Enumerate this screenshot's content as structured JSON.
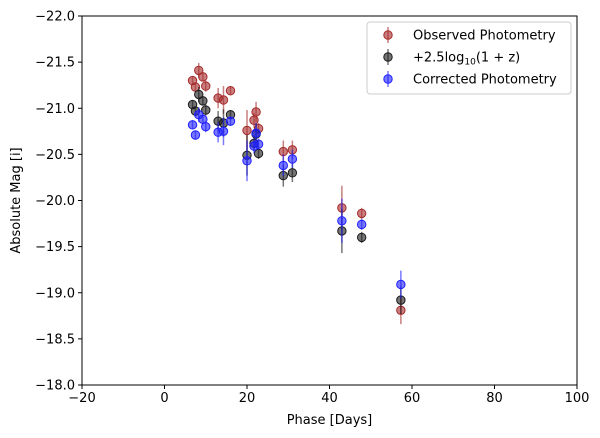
{
  "chart_data": {
    "type": "scatter",
    "title": "",
    "xlabel": "Phase [Days]",
    "ylabel": "Absolute Mag [i]",
    "xlim": [
      -20,
      100
    ],
    "ylim": [
      -18.0,
      -22.0
    ],
    "y_inverted": true,
    "grid": false,
    "legend_position": "top-right",
    "x_ticks": [
      -20,
      0,
      20,
      40,
      60,
      80,
      100
    ],
    "x_tick_labels": [
      "−20",
      "0",
      "20",
      "40",
      "60",
      "80",
      "100"
    ],
    "y_ticks": [
      -22.0,
      -21.5,
      -21.0,
      -20.5,
      -20.0,
      -19.5,
      -19.0,
      -18.5,
      -18.0
    ],
    "y_tick_labels": [
      "−22.0",
      "−21.5",
      "−21.0",
      "−20.5",
      "−20.0",
      "−19.5",
      "−19.0",
      "−18.5",
      "−18.0"
    ],
    "series": [
      {
        "name": "Observed Photometry",
        "color": "#a52a2a",
        "points": [
          {
            "x": 6.8,
            "y": -21.3,
            "err": 0.05
          },
          {
            "x": 7.5,
            "y": -21.23,
            "err": 0.05
          },
          {
            "x": 8.3,
            "y": -21.41,
            "err": 0.08
          },
          {
            "x": 9.3,
            "y": -21.34,
            "err": 0.05
          },
          {
            "x": 10.0,
            "y": -21.24,
            "err": 0.06
          },
          {
            "x": 13.0,
            "y": -21.11,
            "err": 0.11
          },
          {
            "x": 14.3,
            "y": -21.09,
            "err": 0.15
          },
          {
            "x": 16.0,
            "y": -21.19,
            "err": 0.05
          },
          {
            "x": 20.0,
            "y": -20.76,
            "err": 0.22
          },
          {
            "x": 21.7,
            "y": -20.87,
            "err": 0.08
          },
          {
            "x": 22.2,
            "y": -20.96,
            "err": 0.11
          },
          {
            "x": 22.8,
            "y": -20.78,
            "err": 0.06
          },
          {
            "x": 28.8,
            "y": -20.53,
            "err": 0.12
          },
          {
            "x": 31.0,
            "y": -20.55,
            "err": 0.1
          },
          {
            "x": 43.0,
            "y": -19.92,
            "err": 0.24
          },
          {
            "x": 47.8,
            "y": -19.86,
            "err": 0.06
          },
          {
            "x": 57.3,
            "y": -18.81,
            "err": 0.15
          }
        ]
      },
      {
        "name": "+2.5log",
        "name_sub": "10",
        "name_suffix": "(1 + z)",
        "color": "#1a1a1a",
        "points": [
          {
            "x": 6.8,
            "y": -21.04,
            "err": 0.05
          },
          {
            "x": 7.5,
            "y": -20.97,
            "err": 0.05
          },
          {
            "x": 8.3,
            "y": -21.15,
            "err": 0.08
          },
          {
            "x": 9.3,
            "y": -21.08,
            "err": 0.05
          },
          {
            "x": 10.0,
            "y": -20.98,
            "err": 0.06
          },
          {
            "x": 13.0,
            "y": -20.86,
            "err": 0.11
          },
          {
            "x": 14.3,
            "y": -20.84,
            "err": 0.15
          },
          {
            "x": 16.0,
            "y": -20.93,
            "err": 0.05
          },
          {
            "x": 20.0,
            "y": -20.49,
            "err": 0.22
          },
          {
            "x": 21.7,
            "y": -20.62,
            "err": 0.08
          },
          {
            "x": 22.2,
            "y": -20.72,
            "err": 0.11
          },
          {
            "x": 22.8,
            "y": -20.51,
            "err": 0.06
          },
          {
            "x": 28.8,
            "y": -20.27,
            "err": 0.12
          },
          {
            "x": 31.0,
            "y": -20.3,
            "err": 0.1
          },
          {
            "x": 43.0,
            "y": -19.67,
            "err": 0.24
          },
          {
            "x": 47.8,
            "y": -19.6,
            "err": 0.06
          },
          {
            "x": 57.3,
            "y": -18.92,
            "err": 0.15
          }
        ]
      },
      {
        "name": "Corrected Photometry",
        "color": "#1f1fff",
        "points": [
          {
            "x": 6.8,
            "y": -20.82,
            "err": 0.05
          },
          {
            "x": 7.5,
            "y": -20.71,
            "err": 0.05
          },
          {
            "x": 8.3,
            "y": -20.93,
            "err": 0.08
          },
          {
            "x": 9.3,
            "y": -20.88,
            "err": 0.05
          },
          {
            "x": 10.0,
            "y": -20.8,
            "err": 0.06
          },
          {
            "x": 13.0,
            "y": -20.74,
            "err": 0.11
          },
          {
            "x": 14.3,
            "y": -20.75,
            "err": 0.15
          },
          {
            "x": 16.0,
            "y": -20.86,
            "err": 0.05
          },
          {
            "x": 20.0,
            "y": -20.43,
            "err": 0.22
          },
          {
            "x": 21.7,
            "y": -20.59,
            "err": 0.08
          },
          {
            "x": 22.2,
            "y": -20.73,
            "err": 0.11
          },
          {
            "x": 22.8,
            "y": -20.61,
            "err": 0.06
          },
          {
            "x": 28.8,
            "y": -20.38,
            "err": 0.12
          },
          {
            "x": 31.0,
            "y": -20.45,
            "err": 0.1
          },
          {
            "x": 43.0,
            "y": -19.78,
            "err": 0.24
          },
          {
            "x": 47.8,
            "y": -19.74,
            "err": 0.06
          },
          {
            "x": 57.3,
            "y": -19.09,
            "err": 0.15
          }
        ]
      }
    ]
  }
}
